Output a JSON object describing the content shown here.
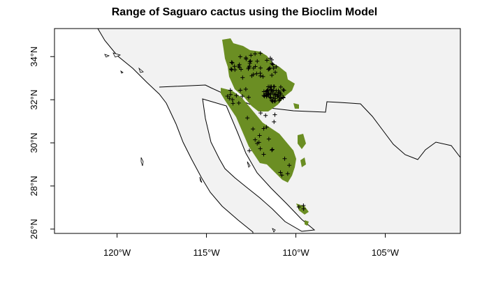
{
  "title": "Range of Saguaro cactus using the Bioclim Model",
  "x_axis": {
    "ticks": [
      {
        "value": -120,
        "label": "120°W"
      },
      {
        "value": -115,
        "label": "115°W"
      },
      {
        "value": -110,
        "label": "110°W"
      },
      {
        "value": -105,
        "label": "105°W"
      }
    ]
  },
  "y_axis": {
    "ticks": [
      {
        "value": 26,
        "label": "26°N"
      },
      {
        "value": 28,
        "label": "28°N"
      },
      {
        "value": 30,
        "label": "30°N"
      },
      {
        "value": 32,
        "label": "32°N"
      },
      {
        "value": 34,
        "label": "34°N"
      }
    ]
  },
  "extent": {
    "lon": [
      -123.5,
      -100.8
    ],
    "lat": [
      25.8,
      35.3
    ]
  },
  "colors": {
    "land": "#f2f2f2",
    "water": "#ffffff",
    "predicted_range": "#6b8e23",
    "occurrence_marker": "#000000",
    "border": "#000000"
  },
  "legend": "none",
  "occurrence_marker_symbol": "+"
}
